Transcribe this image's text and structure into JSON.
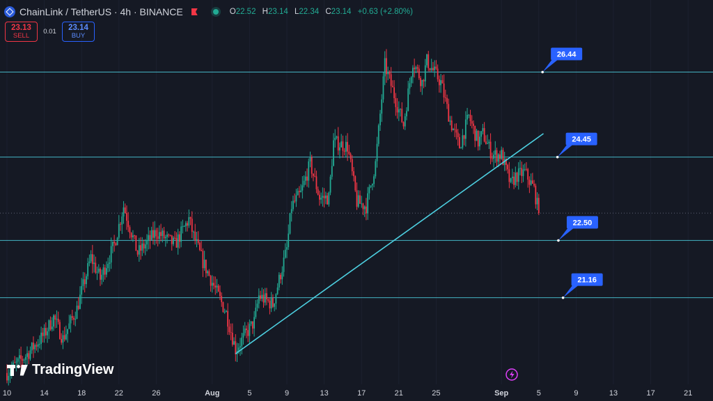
{
  "header": {
    "title": "ChainLink / TetherUS · 4h · BINANCE",
    "ohlc": [
      {
        "key": "O",
        "value": "22.52"
      },
      {
        "key": "H",
        "value": "23.14"
      },
      {
        "key": "L",
        "value": "22.34"
      },
      {
        "key": "C",
        "value": "23.14"
      }
    ],
    "change": "+0.63 (+2.80%)"
  },
  "trade": {
    "sell_price": "23.13",
    "sell_label": "SELL",
    "spread": "0.01",
    "buy_price": "23.14",
    "buy_label": "BUY"
  },
  "watermark": "TradingView",
  "colors": {
    "background": "#151924",
    "up": "#22ab94",
    "down": "#f23645",
    "drawing": "#4dd0e1",
    "label": "#2962ff",
    "axis_text": "#d1d4dc"
  },
  "chart_data": {
    "type": "candlestick",
    "y_range": [
      19.2,
      27.8
    ],
    "x_range": [
      0,
      62
    ],
    "x_ticks": [
      {
        "day": 0,
        "label": "10"
      },
      {
        "day": 4,
        "label": "14"
      },
      {
        "day": 8,
        "label": "18"
      },
      {
        "day": 12,
        "label": "22"
      },
      {
        "day": 16,
        "label": "26"
      },
      {
        "day": 22,
        "label": "Aug"
      },
      {
        "day": 26,
        "label": "5"
      },
      {
        "day": 30,
        "label": "9"
      },
      {
        "day": 34,
        "label": "13"
      },
      {
        "day": 38,
        "label": "17"
      },
      {
        "day": 42,
        "label": "21"
      },
      {
        "day": 46,
        "label": "25"
      },
      {
        "day": 53,
        "label": "Sep"
      },
      {
        "day": 57,
        "label": "5"
      },
      {
        "day": 61,
        "label": "9"
      },
      {
        "day": 65,
        "label": "13"
      },
      {
        "day": 69,
        "label": "17"
      },
      {
        "day": 73,
        "label": "21"
      }
    ],
    "levels": [
      {
        "value": 26.44,
        "label": "26.44"
      },
      {
        "value": 24.45,
        "label": "24.45"
      },
      {
        "value": 22.5,
        "label": "22.50"
      },
      {
        "value": 21.16,
        "label": "21.16"
      }
    ],
    "dotted_level": 23.14,
    "trendline": {
      "from": [
        24.5,
        19.85
      ],
      "to": [
        57.5,
        25.0
      ]
    },
    "close_anchors": [
      [
        0,
        19.4
      ],
      [
        2,
        19.8
      ],
      [
        4,
        20.3
      ],
      [
        5,
        20.7
      ],
      [
        6,
        20.2
      ],
      [
        7.5,
        20.9
      ],
      [
        9,
        22.1
      ],
      [
        10,
        21.6
      ],
      [
        11.5,
        22.4
      ],
      [
        12.5,
        23.3
      ],
      [
        14,
        22.2
      ],
      [
        16,
        22.7
      ],
      [
        18,
        22.4
      ],
      [
        19.5,
        23.0
      ],
      [
        20,
        22.6
      ],
      [
        21,
        22.0
      ],
      [
        23.5,
        20.8
      ],
      [
        24.5,
        19.95
      ],
      [
        26.5,
        20.6
      ],
      [
        27,
        21.2
      ],
      [
        28.5,
        21.0
      ],
      [
        30,
        22.3
      ],
      [
        30.5,
        23.3
      ],
      [
        31.5,
        23.6
      ],
      [
        32.5,
        24.3
      ],
      [
        33.5,
        23.5
      ],
      [
        34.5,
        23.5
      ],
      [
        35,
        24.8
      ],
      [
        36.5,
        24.7
      ],
      [
        37.5,
        23.4
      ],
      [
        38.5,
        23.3
      ],
      [
        39.5,
        24.3
      ],
      [
        40.5,
        26.6
      ],
      [
        41.5,
        25.9
      ],
      [
        42.5,
        25.2
      ],
      [
        43.5,
        26.7
      ],
      [
        44.5,
        26.2
      ],
      [
        45,
        26.7
      ],
      [
        46.5,
        26.2
      ],
      [
        47.5,
        25.3
      ],
      [
        48.5,
        24.7
      ],
      [
        49.5,
        25.4
      ],
      [
        50.5,
        24.8
      ],
      [
        51,
        25.0
      ],
      [
        52,
        24.5
      ],
      [
        53,
        24.5
      ],
      [
        54,
        23.8
      ],
      [
        54.5,
        24.0
      ],
      [
        55.5,
        24.1
      ],
      [
        56.5,
        23.7
      ],
      [
        57,
        23.14
      ]
    ]
  }
}
